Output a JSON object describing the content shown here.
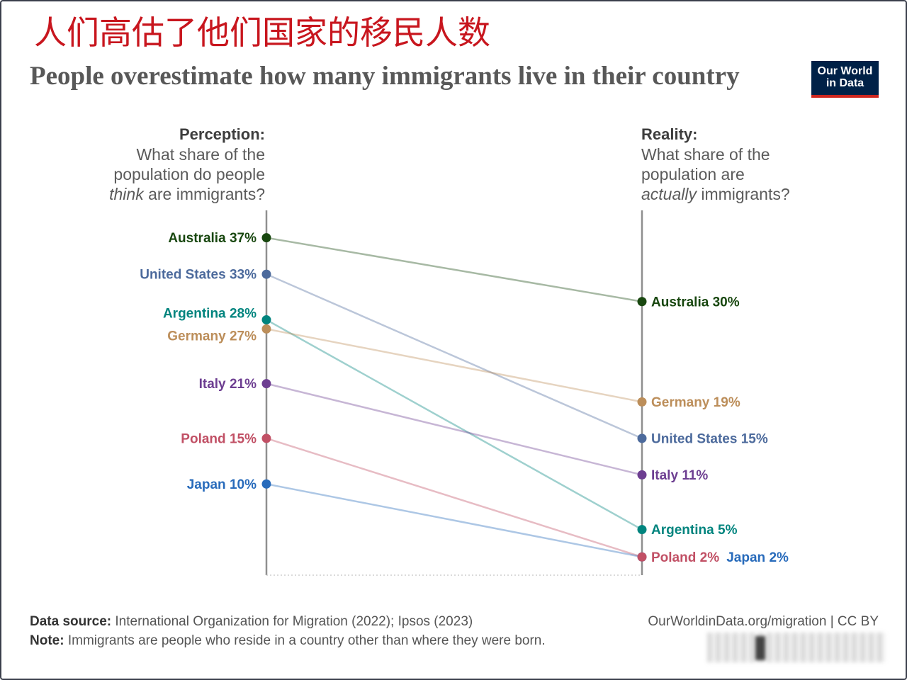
{
  "headline_cn": "人们高估了他们国家的移民人数",
  "colors": {
    "headline": "#C8161E",
    "logo_background": "#002147",
    "logo_accent": "#CE261E"
  },
  "logo": {
    "line1": "Our World",
    "line2": "in Data"
  },
  "chart_data": {
    "type": "line",
    "title": "People overestimate how many immigrants live in their country",
    "columns": [
      {
        "label": "Perception:",
        "question_line1": "What share of the",
        "question_line2": "population do people",
        "question_line3_em": "think",
        "question_line3_rest": " are immigrants?"
      },
      {
        "label": "Reality:",
        "question_line1": "What share of the",
        "question_line2": "population are",
        "question_line3_em": "actually",
        "question_line3_rest": " immigrants?"
      }
    ],
    "value_suffix": "%",
    "ylim": [
      0,
      40
    ],
    "grid": false,
    "series": [
      {
        "name": "Australia",
        "values": [
          37,
          30
        ],
        "color": "#18470F"
      },
      {
        "name": "United States",
        "values": [
          33,
          15
        ],
        "color": "#4C6A9C"
      },
      {
        "name": "Argentina",
        "values": [
          28,
          5
        ],
        "color": "#00847E"
      },
      {
        "name": "Germany",
        "values": [
          27,
          19
        ],
        "color": "#BC8E5A"
      },
      {
        "name": "Italy",
        "values": [
          21,
          11
        ],
        "color": "#6D3E91"
      },
      {
        "name": "Poland",
        "values": [
          15,
          2
        ],
        "color": "#C15065"
      },
      {
        "name": "Japan",
        "values": [
          10,
          2
        ],
        "color": "#286BBB"
      }
    ]
  },
  "footer": {
    "source_label": "Data source:",
    "source_text": " International Organization for Migration (2022); Ipsos (2023)",
    "note_label": "Note:",
    "note_text": " Immigrants are people who reside in a country other than where they were born.",
    "credit": "OurWorldinData.org/migration | CC BY"
  }
}
